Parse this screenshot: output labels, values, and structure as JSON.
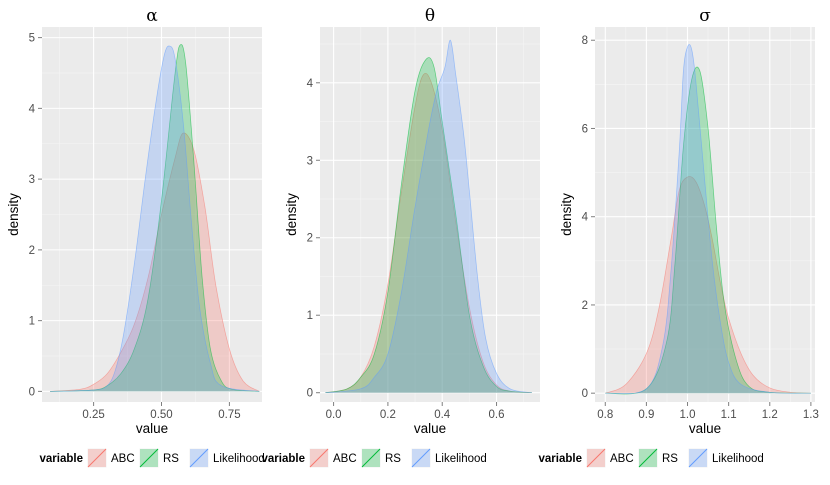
{
  "colors": {
    "ABC": "#f8766d",
    "RS": "#00ba38",
    "Likelihood": "#619cff"
  },
  "legend": {
    "title": "variable",
    "entries": [
      {
        "key": "ABC",
        "label": "ABC"
      },
      {
        "key": "RS",
        "label": "RS"
      },
      {
        "key": "Likelihood",
        "label": "Likelihood"
      }
    ]
  },
  "chart_data": [
    {
      "type": "area",
      "title": "α",
      "xlabel": "value",
      "ylabel": "density",
      "xlim": [
        0.06,
        0.87
      ],
      "ylim": [
        -0.15,
        5.15
      ],
      "xticks": [
        0.25,
        0.5,
        0.75
      ],
      "xtick_labels": [
        "0.25",
        "0.50",
        "0.75"
      ],
      "yticks": [
        0,
        1,
        2,
        3,
        4,
        5
      ],
      "ytick_labels": [
        "0",
        "1",
        "2",
        "3",
        "4",
        "5"
      ],
      "series": [
        {
          "name": "ABC",
          "x": [
            0.09,
            0.2,
            0.25,
            0.3,
            0.35,
            0.4,
            0.45,
            0.5,
            0.55,
            0.58,
            0.62,
            0.66,
            0.7,
            0.75,
            0.8,
            0.86
          ],
          "y": [
            0,
            0.03,
            0.1,
            0.25,
            0.55,
            0.95,
            1.6,
            2.5,
            3.3,
            3.65,
            3.4,
            2.6,
            1.5,
            0.6,
            0.15,
            0
          ]
        },
        {
          "name": "RS",
          "x": [
            0.09,
            0.25,
            0.3,
            0.35,
            0.4,
            0.45,
            0.5,
            0.55,
            0.57,
            0.59,
            0.62,
            0.65,
            0.68,
            0.72,
            0.76,
            0.86
          ],
          "y": [
            0,
            0.02,
            0.08,
            0.25,
            0.6,
            1.3,
            2.7,
            4.5,
            4.9,
            4.6,
            3.2,
            1.6,
            0.6,
            0.15,
            0.03,
            0
          ]
        },
        {
          "name": "Likelihood",
          "x": [
            0.09,
            0.25,
            0.3,
            0.33,
            0.36,
            0.4,
            0.44,
            0.48,
            0.51,
            0.53,
            0.55,
            0.58,
            0.61,
            0.64,
            0.68,
            0.72,
            0.86
          ],
          "y": [
            0,
            0.02,
            0.08,
            0.3,
            0.8,
            1.8,
            3.0,
            4.1,
            4.75,
            4.88,
            4.7,
            3.8,
            2.4,
            1.2,
            0.4,
            0.08,
            0
          ]
        }
      ]
    },
    {
      "type": "area",
      "title": "θ",
      "xlabel": "value",
      "ylabel": "density",
      "xlim": [
        -0.05,
        0.76
      ],
      "ylim": [
        -0.12,
        4.72
      ],
      "xticks": [
        0.0,
        0.2,
        0.4,
        0.6
      ],
      "xtick_labels": [
        "0.0",
        "0.2",
        "0.4",
        "0.6"
      ],
      "yticks": [
        0,
        1,
        2,
        3,
        4
      ],
      "ytick_labels": [
        "0",
        "1",
        "2",
        "3",
        "4"
      ],
      "series": [
        {
          "name": "ABC",
          "x": [
            -0.03,
            0.05,
            0.1,
            0.15,
            0.2,
            0.25,
            0.3,
            0.33,
            0.36,
            0.4,
            0.45,
            0.5,
            0.55,
            0.6,
            0.65,
            0.73
          ],
          "y": [
            0,
            0.05,
            0.2,
            0.6,
            1.4,
            2.6,
            3.7,
            4.1,
            4.0,
            3.4,
            2.2,
            1.1,
            0.4,
            0.1,
            0.02,
            0
          ]
        },
        {
          "name": "RS",
          "x": [
            -0.03,
            0.05,
            0.1,
            0.15,
            0.2,
            0.25,
            0.3,
            0.34,
            0.37,
            0.4,
            0.45,
            0.5,
            0.55,
            0.6,
            0.65,
            0.73
          ],
          "y": [
            0,
            0.05,
            0.2,
            0.5,
            1.3,
            2.7,
            3.9,
            4.3,
            4.2,
            3.5,
            2.3,
            1.0,
            0.35,
            0.08,
            0.02,
            0
          ]
        },
        {
          "name": "Likelihood",
          "x": [
            -0.03,
            0.1,
            0.15,
            0.2,
            0.25,
            0.3,
            0.35,
            0.38,
            0.41,
            0.43,
            0.45,
            0.48,
            0.5,
            0.53,
            0.56,
            0.6,
            0.65,
            0.73
          ],
          "y": [
            0,
            0.05,
            0.2,
            0.5,
            1.3,
            2.4,
            3.4,
            3.9,
            4.2,
            4.55,
            4.1,
            3.3,
            2.6,
            1.5,
            0.7,
            0.25,
            0.05,
            0
          ]
        }
      ]
    },
    {
      "type": "area",
      "title": "σ",
      "xlabel": "value",
      "ylabel": "density",
      "xlim": [
        0.775,
        1.31
      ],
      "ylim": [
        -0.2,
        8.3
      ],
      "xticks": [
        0.8,
        0.9,
        1.0,
        1.1,
        1.2,
        1.3
      ],
      "xtick_labels": [
        "0.8",
        "0.9",
        "1.0",
        "1.1",
        "1.2",
        "1.3"
      ],
      "yticks": [
        0,
        2,
        4,
        6,
        8
      ],
      "ytick_labels": [
        "0",
        "2",
        "4",
        "6",
        "8"
      ],
      "series": [
        {
          "name": "ABC",
          "x": [
            0.8,
            0.85,
            0.9,
            0.93,
            0.96,
            0.98,
            1.0,
            1.02,
            1.04,
            1.06,
            1.08,
            1.1,
            1.13,
            1.16,
            1.2,
            1.25,
            1.3
          ],
          "y": [
            0,
            0.2,
            0.9,
            1.9,
            3.5,
            4.6,
            4.9,
            4.8,
            4.3,
            3.5,
            2.5,
            1.7,
            0.9,
            0.4,
            0.12,
            0.02,
            0
          ]
        },
        {
          "name": "RS",
          "x": [
            0.8,
            0.9,
            0.95,
            0.97,
            0.99,
            1.01,
            1.03,
            1.05,
            1.07,
            1.09,
            1.12,
            1.15,
            1.2,
            1.3
          ],
          "y": [
            0,
            0.1,
            1.2,
            3.0,
            5.6,
            7.1,
            7.3,
            6.0,
            3.8,
            2.0,
            0.7,
            0.15,
            0.02,
            0
          ]
        },
        {
          "name": "Likelihood",
          "x": [
            0.8,
            0.9,
            0.94,
            0.96,
            0.98,
            0.99,
            1.0,
            1.01,
            1.02,
            1.04,
            1.06,
            1.08,
            1.1,
            1.13,
            1.2,
            1.3
          ],
          "y": [
            0,
            0.1,
            1.1,
            2.8,
            5.5,
            7.3,
            7.85,
            7.8,
            7.1,
            5.0,
            3.0,
            1.6,
            0.7,
            0.2,
            0.02,
            0
          ]
        }
      ]
    }
  ]
}
